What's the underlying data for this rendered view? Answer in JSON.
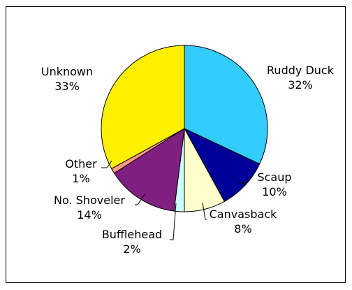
{
  "chart_data": {
    "type": "pie",
    "legend": "none",
    "slices": [
      {
        "label": "Ruddy Duck",
        "value": 32,
        "value_label": "32%",
        "color": "#33CCFF"
      },
      {
        "label": "Scaup",
        "value": 10,
        "value_label": "10%",
        "color": "#000099"
      },
      {
        "label": "Canvasback",
        "value": 8,
        "value_label": "8%",
        "color": "#FFFFCC"
      },
      {
        "label": "Bufflehead",
        "value": 2,
        "value_label": "2%",
        "color": "#CCFFFF"
      },
      {
        "label": "No. Shoveler",
        "value": 14,
        "value_label": "14%",
        "color": "#7F1F7F"
      },
      {
        "label": "Other",
        "value": 1,
        "value_label": "1%",
        "color": "#FF9980"
      },
      {
        "label": "Unknown",
        "value": 33,
        "value_label": "33%",
        "color": "#FFF000"
      }
    ]
  }
}
